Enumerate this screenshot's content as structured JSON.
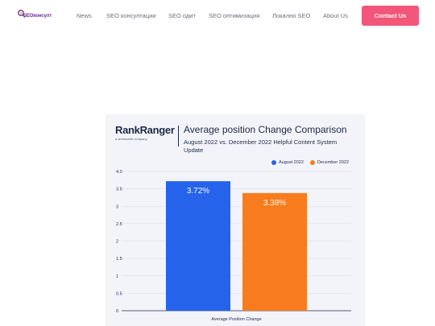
{
  "header": {
    "logo_text": "SEOконсулт",
    "nav": [
      {
        "label": "News"
      },
      {
        "label": "SEO консултации"
      },
      {
        "label": "SEO одит"
      },
      {
        "label": "SEO оптимизация"
      },
      {
        "label": "Локално SEO"
      },
      {
        "label": "About Us"
      }
    ],
    "contact_label": "Contact Us",
    "accent_color": "#f2577a"
  },
  "card": {
    "brand_name": "RankRanger",
    "brand_sub": "a similarweb company"
  },
  "chart_data": {
    "type": "bar",
    "title": "Average position Change Comparison",
    "subtitle": "August 2022 vs. December 2022 Helpful Content System Update",
    "categories": [
      "Average Position Change"
    ],
    "series": [
      {
        "name": "August 2022",
        "values": [
          3.72
        ],
        "color": "#2563eb",
        "label": "3.72%"
      },
      {
        "name": "December 2022",
        "values": [
          3.38
        ],
        "color": "#f87c1d",
        "label": "3.38%"
      }
    ],
    "xlabel": "Average Position Change",
    "ylabel": "",
    "ylim": [
      0,
      4.0
    ],
    "yticks": [
      "0",
      "0.5",
      "1",
      "1.5",
      "2",
      "2.5",
      "3",
      "3.5",
      "4.0"
    ],
    "grid": true,
    "legend_position": "top-right"
  }
}
